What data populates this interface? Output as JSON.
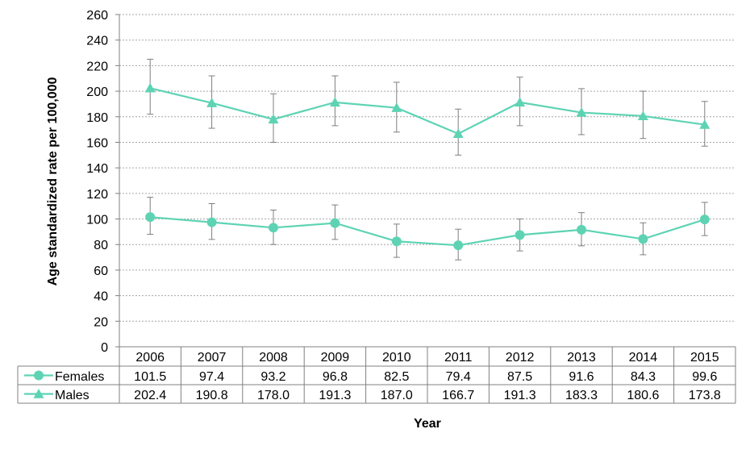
{
  "chart_data": {
    "type": "line",
    "ylabel": "Age standardized rate per 100,000",
    "xlabel": "Year",
    "ylim": [
      0,
      260
    ],
    "y_ticks": [
      0,
      20,
      40,
      60,
      80,
      100,
      120,
      140,
      160,
      180,
      200,
      220,
      240,
      260
    ],
    "grid": "horizontal dotted",
    "legend": "data table below plot",
    "categories": [
      "2006",
      "2007",
      "2008",
      "2009",
      "2010",
      "2011",
      "2012",
      "2013",
      "2014",
      "2015"
    ],
    "series": [
      {
        "name": "Females",
        "marker": "circle",
        "color": "#5ed3b4",
        "values": [
          101.5,
          97.4,
          93.2,
          96.8,
          82.5,
          79.4,
          87.5,
          91.6,
          84.3,
          99.6
        ],
        "labels": [
          "101.5",
          "97.4",
          "93.2",
          "96.8",
          "82.5",
          "79.4",
          "87.5",
          "91.6",
          "84.3",
          "99.6"
        ],
        "error_low": [
          88,
          84,
          80,
          84,
          70,
          68,
          75,
          79,
          72,
          87
        ],
        "error_high": [
          117,
          112,
          107,
          111,
          96,
          92,
          100,
          105,
          97,
          113
        ]
      },
      {
        "name": "Males",
        "marker": "triangle",
        "color": "#5ed3b4",
        "values": [
          202.4,
          190.8,
          178.0,
          191.3,
          187.0,
          166.7,
          191.3,
          183.3,
          180.6,
          173.8
        ],
        "labels": [
          "202.4",
          "190.8",
          "178.0",
          "191.3",
          "187.0",
          "166.7",
          "191.3",
          "183.3",
          "180.6",
          "173.8"
        ],
        "error_low": [
          182,
          171,
          160,
          173,
          168,
          150,
          173,
          166,
          163,
          157
        ],
        "error_high": [
          225,
          212,
          198,
          212,
          207,
          186,
          211,
          202,
          200,
          192
        ]
      }
    ]
  }
}
